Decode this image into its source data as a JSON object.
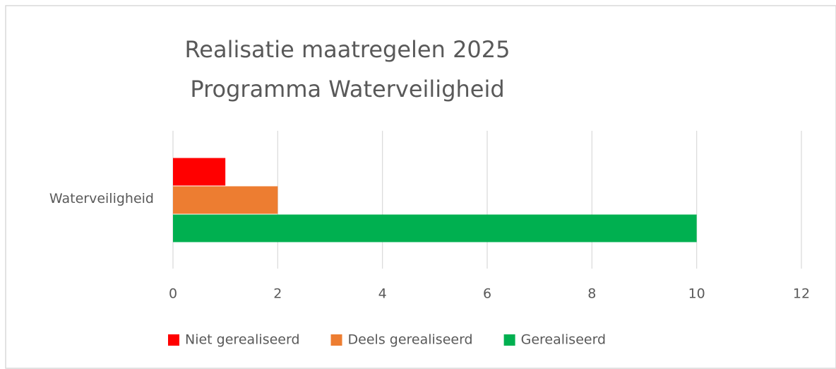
{
  "chart_data": {
    "type": "hbar",
    "title": [
      "Realisatie maatregelen 2025",
      "Programma Waterveiligheid"
    ],
    "categories": [
      "Waterveiligheid"
    ],
    "series": [
      {
        "name": "Niet gerealiseerd",
        "color": "#ff0000",
        "values": [
          1
        ]
      },
      {
        "name": "Deels gerealiseerd",
        "color": "#ed7d31",
        "values": [
          2
        ]
      },
      {
        "name": "Gerealiseerd",
        "color": "#00b050",
        "values": [
          10
        ]
      }
    ],
    "xlim": [
      0,
      12
    ],
    "xticks": [
      0,
      2,
      4,
      6,
      8,
      10,
      12
    ],
    "grid": true,
    "legend": "bottom"
  }
}
